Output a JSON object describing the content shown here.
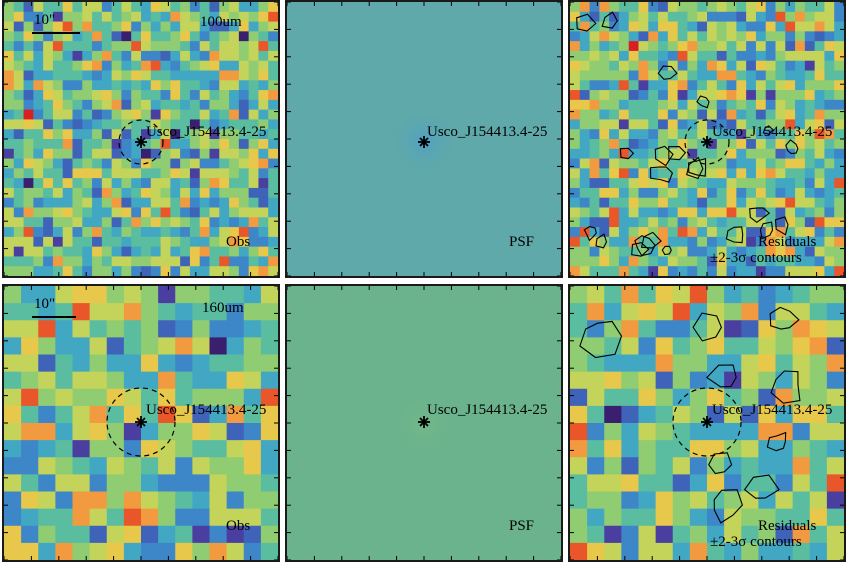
{
  "bands": [
    {
      "id": "100um",
      "band_label": "100um",
      "scale_label": "10\"",
      "grid": 28,
      "obs_label": "Obs",
      "psf_label": "PSF",
      "residual_label_1": "Residuals",
      "residual_label_2": "±2-3σ contours",
      "source_label": "Usco_J154413.4-25",
      "psf_color": "#5fa9aa",
      "psf_core_color": "#4f9fc6"
    },
    {
      "id": "160um",
      "band_label": "160um",
      "scale_label": "10\"",
      "grid": 16,
      "obs_label": "Obs",
      "psf_label": "PSF",
      "residual_label_1": "Residuals",
      "residual_label_2": "±2-3σ contours",
      "source_label": "Usco_J154413.4-25",
      "psf_color": "#6ab38d",
      "psf_core_color": "#73b888"
    }
  ],
  "colormap": [
    "#3a1f6e",
    "#4a3fa0",
    "#3f63b8",
    "#3d86c8",
    "#41a7c3",
    "#5bbda0",
    "#8fcc72",
    "#c4d45a",
    "#e7c84a",
    "#f19a3f",
    "#e8562a",
    "#d92020"
  ]
}
